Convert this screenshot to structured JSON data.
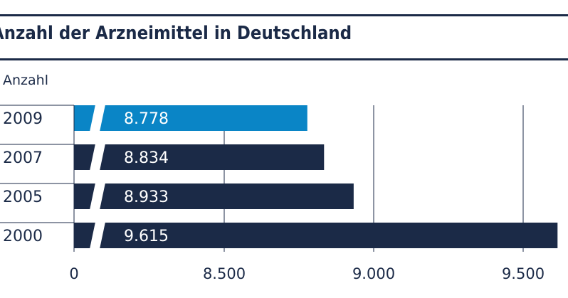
{
  "chart_data": {
    "type": "bar",
    "orientation": "horizontal",
    "title": "Anzahl der Arzneimittel in Deutschland",
    "ylabel": "Anzahl",
    "categories": [
      "2009",
      "2007",
      "2005",
      "2000"
    ],
    "values": [
      8778,
      8834,
      8933,
      9615
    ],
    "value_labels": [
      "8.778",
      "8.834",
      "8.933",
      "9.615"
    ],
    "axis_break": true,
    "xlim": [
      8250,
      9650
    ],
    "xticks": [
      {
        "value": 0,
        "label": "0"
      },
      {
        "value": 8500,
        "label": "8.500"
      },
      {
        "value": 9000,
        "label": "9.000"
      },
      {
        "value": 9500,
        "label": "9.500"
      }
    ],
    "highlight_color": "#0a85c6",
    "bar_color": "#1b2a47",
    "grid": true
  }
}
